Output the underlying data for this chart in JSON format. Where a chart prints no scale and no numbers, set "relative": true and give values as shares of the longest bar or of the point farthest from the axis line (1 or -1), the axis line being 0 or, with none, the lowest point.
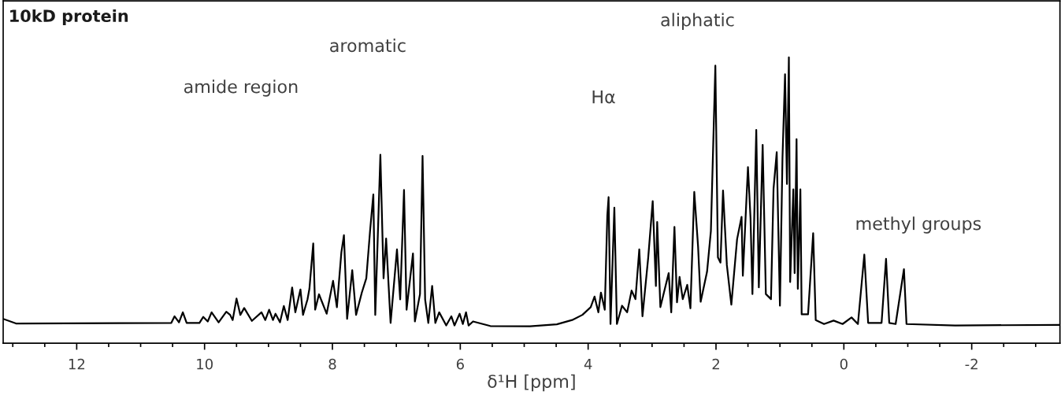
{
  "chart_data": {
    "type": "line",
    "title": "10kD protein",
    "xlabel": "δ¹H [ppm]",
    "relative": true,
    "grid": false,
    "tick_labels": "x",
    "marker": "none",
    "line_style": "solid",
    "annotations": [
      "amide region",
      "aromatic",
      "Hα",
      "aliphatic",
      "methyl groups"
    ],
    "xlim": [
      13.15,
      -3.38
    ],
    "xticks": [
      {
        "value": 13,
        "label": null
      },
      {
        "value": 12.5,
        "label": null
      },
      12,
      {
        "value": 11.5,
        "label": null
      },
      {
        "value": 11,
        "label": null
      },
      {
        "value": 10.5,
        "label": null
      },
      10,
      {
        "value": 9.5,
        "label": null
      },
      {
        "value": 9,
        "label": null
      },
      {
        "value": 8.5,
        "label": null
      },
      8,
      {
        "value": 7.5,
        "label": null
      },
      {
        "value": 7,
        "label": null
      },
      {
        "value": 6.5,
        "label": null
      },
      6,
      {
        "value": 5.5,
        "label": null
      },
      {
        "value": 5,
        "label": null
      },
      {
        "value": 4.5,
        "label": null
      },
      4,
      {
        "value": 3.5,
        "label": null
      },
      {
        "value": 3,
        "label": null
      },
      {
        "value": 2.5,
        "label": null
      },
      2,
      {
        "value": 1.5,
        "label": null
      },
      {
        "value": 1,
        "label": null
      },
      {
        "value": 0.5,
        "label": null
      },
      0,
      {
        "value": -0.5,
        "label": null
      },
      {
        "value": -1,
        "label": null
      },
      {
        "value": -1.5,
        "label": null
      },
      -2,
      {
        "value": -2.5,
        "label": null
      },
      {
        "value": -3,
        "label": null
      }
    ],
    "series": [
      {
        "color": "#000000",
        "x": [
          13.15,
          12.95,
          10.52,
          10.47,
          10.4,
          10.34,
          10.28,
          10.08,
          10.02,
          9.95,
          9.89,
          9.78,
          9.66,
          9.6,
          9.56,
          9.5,
          9.44,
          9.38,
          9.26,
          9.11,
          9.05,
          8.99,
          8.93,
          8.89,
          8.82,
          8.76,
          8.7,
          8.63,
          8.58,
          8.5,
          8.46,
          8.39,
          8.36,
          8.3,
          8.27,
          8.21,
          8.09,
          7.99,
          7.93,
          7.86,
          7.82,
          7.77,
          7.69,
          7.63,
          7.54,
          7.47,
          7.41,
          7.36,
          7.33,
          7.3,
          7.25,
          7.2,
          7.16,
          7.09,
          6.99,
          6.94,
          6.88,
          6.84,
          6.74,
          6.71,
          6.63,
          6.59,
          6.55,
          6.5,
          6.44,
          6.39,
          6.33,
          6.22,
          6.14,
          6.09,
          6.01,
          5.96,
          5.91,
          5.87,
          5.8,
          5.53,
          4.91,
          4.49,
          4.25,
          4.09,
          3.96,
          3.9,
          3.84,
          3.8,
          3.74,
          3.7,
          3.68,
          3.65,
          3.59,
          3.55,
          3.47,
          3.39,
          3.32,
          3.26,
          3.2,
          3.15,
          3.06,
          2.99,
          2.94,
          2.92,
          2.87,
          2.74,
          2.7,
          2.65,
          2.61,
          2.57,
          2.52,
          2.45,
          2.4,
          2.34,
          2.28,
          2.24,
          2.14,
          2.08,
          2.01,
          1.97,
          1.93,
          1.89,
          1.83,
          1.76,
          1.67,
          1.6,
          1.58,
          1.5,
          1.46,
          1.43,
          1.37,
          1.33,
          1.27,
          1.22,
          1.14,
          1.1,
          1.05,
          1.0,
          0.96,
          0.92,
          0.89,
          0.86,
          0.84,
          0.79,
          0.77,
          0.74,
          0.72,
          0.68,
          0.66,
          0.56,
          0.48,
          0.44,
          0.31,
          0.16,
          0.02,
          -0.12,
          -0.22,
          -0.32,
          -0.38,
          -0.59,
          -0.66,
          -0.71,
          -0.81,
          -0.94,
          -0.98,
          -1.74,
          -3.36
        ],
        "values": [
          0.085,
          0.069,
          0.071,
          0.094,
          0.073,
          0.108,
          0.071,
          0.071,
          0.092,
          0.076,
          0.108,
          0.073,
          0.11,
          0.099,
          0.081,
          0.156,
          0.099,
          0.123,
          0.078,
          0.108,
          0.081,
          0.117,
          0.081,
          0.103,
          0.073,
          0.13,
          0.081,
          0.195,
          0.108,
          0.188,
          0.099,
          0.153,
          0.19,
          0.349,
          0.117,
          0.171,
          0.103,
          0.218,
          0.126,
          0.318,
          0.378,
          0.085,
          0.255,
          0.099,
          0.177,
          0.227,
          0.396,
          0.52,
          0.099,
          0.305,
          0.659,
          0.227,
          0.366,
          0.071,
          0.328,
          0.153,
          0.536,
          0.117,
          0.314,
          0.076,
          0.172,
          0.655,
          0.153,
          0.071,
          0.2,
          0.071,
          0.108,
          0.062,
          0.094,
          0.062,
          0.103,
          0.067,
          0.108,
          0.062,
          0.076,
          0.06,
          0.059,
          0.066,
          0.081,
          0.099,
          0.126,
          0.163,
          0.108,
          0.177,
          0.117,
          0.447,
          0.511,
          0.067,
          0.474,
          0.067,
          0.131,
          0.108,
          0.184,
          0.154,
          0.328,
          0.094,
          0.3,
          0.497,
          0.2,
          0.424,
          0.126,
          0.245,
          0.108,
          0.407,
          0.143,
          0.232,
          0.154,
          0.204,
          0.122,
          0.529,
          0.337,
          0.145,
          0.25,
          0.392,
          0.971,
          0.3,
          0.282,
          0.534,
          0.273,
          0.135,
          0.364,
          0.442,
          0.236,
          0.616,
          0.438,
          0.172,
          0.746,
          0.195,
          0.694,
          0.172,
          0.154,
          0.54,
          0.668,
          0.131,
          0.648,
          0.941,
          0.557,
          1.0,
          0.214,
          0.538,
          0.245,
          0.714,
          0.19,
          0.538,
          0.101,
          0.101,
          0.385,
          0.081,
          0.067,
          0.079,
          0.067,
          0.09,
          0.067,
          0.31,
          0.071,
          0.071,
          0.295,
          0.071,
          0.067,
          0.259,
          0.067,
          0.062,
          0.064
        ]
      }
    ]
  }
}
